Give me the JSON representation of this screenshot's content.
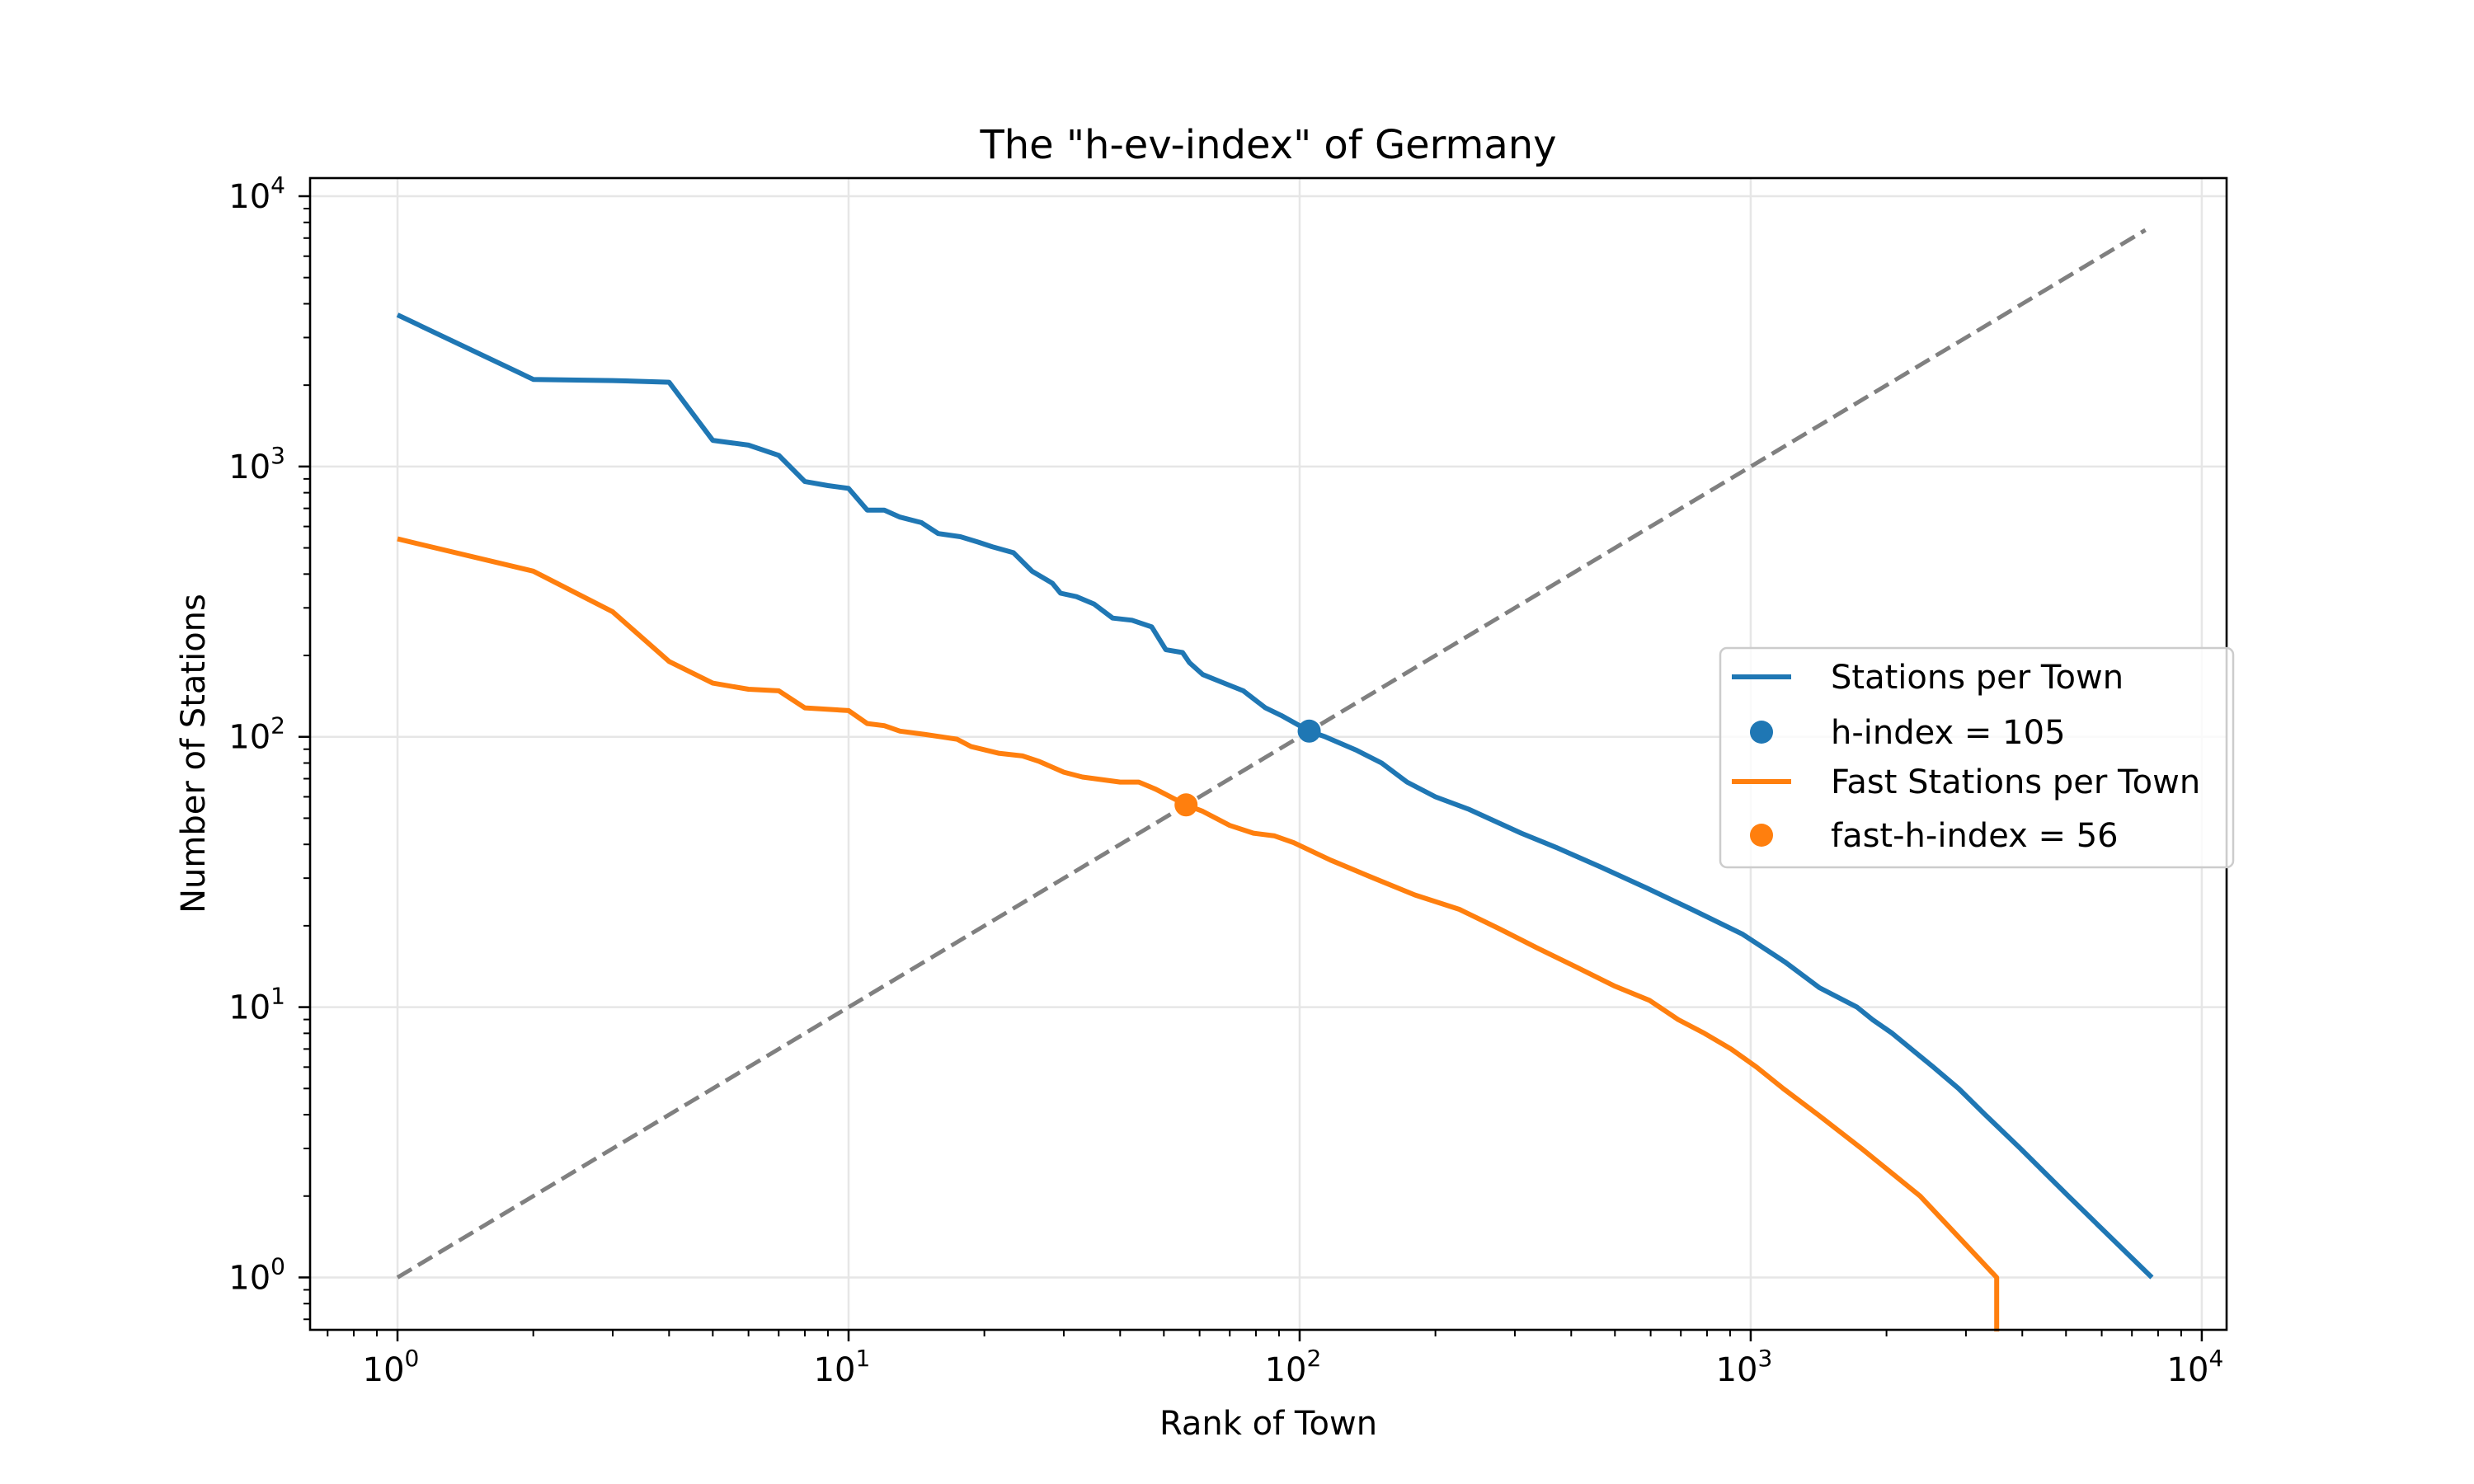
{
  "chart_data": {
    "type": "line",
    "title": "The \"h-ev-index\" of Germany",
    "xlabel": "Rank of Town",
    "ylabel": "Number of Stations",
    "xscale": "log",
    "yscale": "log",
    "xlim": [
      0.64,
      11350
    ],
    "ylim": [
      0.64,
      11670
    ],
    "grid": true,
    "x_ticks": [
      {
        "value": 1,
        "base": "10",
        "exp": "0"
      },
      {
        "value": 10,
        "base": "10",
        "exp": "1"
      },
      {
        "value": 100,
        "base": "10",
        "exp": "2"
      },
      {
        "value": 1000,
        "base": "10",
        "exp": "3"
      },
      {
        "value": 10000,
        "base": "10",
        "exp": "4"
      }
    ],
    "y_ticks": [
      {
        "value": 1,
        "base": "10",
        "exp": "0"
      },
      {
        "value": 10,
        "base": "10",
        "exp": "1"
      },
      {
        "value": 100,
        "base": "10",
        "exp": "2"
      },
      {
        "value": 1000,
        "base": "10",
        "exp": "3"
      },
      {
        "value": 10000,
        "base": "10",
        "exp": "4"
      }
    ],
    "legend_position": "center-right",
    "series": [
      {
        "name": "Stations per Town",
        "kind": "line",
        "color": "#1f77b4",
        "x": [
          1,
          2,
          3,
          4,
          5,
          6,
          7,
          8,
          9,
          10,
          11,
          12,
          13,
          14.5,
          15.8,
          17.7,
          19.4,
          20.8,
          23.2,
          25.5,
          28.3,
          29.5,
          32,
          35,
          38.5,
          42.5,
          47,
          50.5,
          55,
          57,
          61,
          68,
          75,
          84,
          91,
          105,
          114,
          134,
          152,
          173,
          200,
          237,
          310,
          370,
          465,
          590,
          740,
          960,
          1190,
          1420,
          1720,
          1860,
          2060,
          2270,
          2540,
          2890,
          3310,
          3960,
          5060,
          7750
        ],
        "y": [
          3640,
          2100,
          2080,
          2050,
          1250,
          1200,
          1100,
          880,
          850,
          830,
          690,
          690,
          650,
          620,
          565,
          550,
          525,
          505,
          480,
          410,
          370,
          340,
          330,
          310,
          275,
          270,
          255,
          210,
          205,
          188,
          170,
          158,
          148,
          128,
          120,
          105,
          100,
          89,
          80,
          68,
          60,
          54,
          44,
          39,
          33,
          27.5,
          23,
          18.6,
          14.7,
          11.8,
          10,
          9,
          8,
          7,
          6,
          5,
          4,
          3,
          2,
          1
        ]
      },
      {
        "name": "h-index = 105",
        "kind": "point",
        "color": "#1f77b4",
        "x": [
          105
        ],
        "y": [
          105
        ]
      },
      {
        "name": "Fast Stations per Town",
        "kind": "line",
        "color": "#ff7f0e",
        "x": [
          1,
          2,
          3,
          4,
          5,
          6,
          7,
          8,
          10,
          11,
          12,
          13,
          14.8,
          17.4,
          18.7,
          21.5,
          24.3,
          26.5,
          30,
          33,
          40,
          44,
          48,
          56,
          61,
          70,
          79,
          88,
          97,
          117,
          146,
          180,
          226,
          277,
          335,
          413,
          497,
          596,
          690,
          790,
          905,
          1030,
          1180,
          1410,
          1760,
          2375,
          3510,
          3510
        ],
        "y": [
          540,
          410,
          290,
          190,
          158,
          150,
          148,
          128,
          125,
          112,
          110,
          105,
          102,
          98,
          92,
          87,
          85,
          81,
          74,
          71,
          68,
          68,
          64,
          56,
          53,
          47,
          44,
          43,
          40.6,
          35,
          30,
          26,
          23,
          19.5,
          16.6,
          14,
          12,
          10.6,
          9,
          8,
          7,
          6,
          5,
          4,
          3,
          2,
          1,
          0.5
        ]
      },
      {
        "name": "fast-h-index = 56",
        "kind": "point",
        "color": "#ff7f0e",
        "x": [
          56
        ],
        "y": [
          56
        ]
      },
      {
        "name": "y = x reference",
        "kind": "dashed-line",
        "color": "#808080",
        "x": [
          1,
          7500
        ],
        "y": [
          1,
          7500
        ],
        "in_legend": false
      }
    ],
    "legend": [
      {
        "label": "Stations per Town",
        "kind": "line",
        "color": "#1f77b4"
      },
      {
        "label": "h-index = 105",
        "kind": "point",
        "color": "#1f77b4"
      },
      {
        "label": "Fast Stations per Town",
        "kind": "line",
        "color": "#ff7f0e"
      },
      {
        "label": "fast-h-index = 56",
        "kind": "point",
        "color": "#ff7f0e"
      }
    ]
  }
}
